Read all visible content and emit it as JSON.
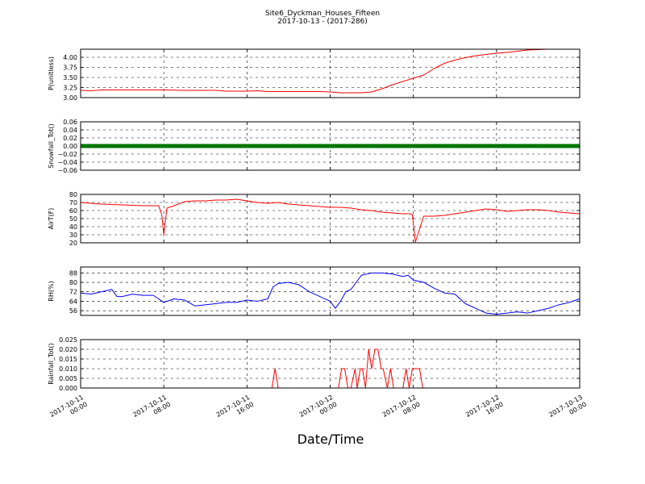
{
  "title": "Site6_Dyckman_Houses_Fifteen",
  "subtitle": "2017-10-13 - (2017-286)",
  "colors": {
    "red": "#ff0000",
    "green": "#008000",
    "blue": "#0000ff",
    "grid": "#000000"
  },
  "chart_data": {
    "type": "line",
    "xlabel": "Date/Time",
    "x_ticks": [
      {
        "value": 0,
        "line1": "2017-10-11",
        "line2": "00:00"
      },
      {
        "value": 8,
        "line1": "2017-10-11",
        "line2": "08:00"
      },
      {
        "value": 16,
        "line1": "2017-10-11",
        "line2": "16:00"
      },
      {
        "value": 24,
        "line1": "2017-10-12",
        "line2": "00:00"
      },
      {
        "value": 32,
        "line1": "2017-10-12",
        "line2": "08:00"
      },
      {
        "value": 40,
        "line1": "2017-10-12",
        "line2": "16:00"
      },
      {
        "value": 48,
        "line1": "2017-10-13",
        "line2": "00:00"
      }
    ],
    "xlim": [
      0,
      48
    ],
    "grid": true,
    "panels": [
      {
        "ylabel": "P(unitless)",
        "ylim": [
          3.0,
          4.2
        ],
        "yticks": [
          "3.00",
          "3.25",
          "3.50",
          "3.75",
          "4.00"
        ],
        "ytick_values": [
          3.0,
          3.25,
          3.5,
          3.75,
          4.0
        ],
        "series": [
          {
            "color": "#ff0000",
            "x": [
              0,
              1,
              2,
              4,
              6,
              8,
              10,
              12,
              13,
              14,
              16,
              17,
              18,
              20,
              22,
              23,
              24,
              25,
              26,
              27,
              28,
              29,
              30,
              31,
              32,
              33,
              34,
              35,
              36,
              37,
              38,
              39,
              40,
              41,
              42,
              43,
              44,
              45,
              46,
              47,
              48
            ],
            "y": [
              3.18,
              3.17,
              3.19,
              3.19,
              3.19,
              3.19,
              3.18,
              3.18,
              3.18,
              3.16,
              3.16,
              3.17,
              3.15,
              3.15,
              3.15,
              3.15,
              3.14,
              3.12,
              3.12,
              3.12,
              3.14,
              3.22,
              3.32,
              3.4,
              3.48,
              3.56,
              3.72,
              3.85,
              3.93,
              3.99,
              4.04,
              4.07,
              4.1,
              4.12,
              4.15,
              4.18,
              4.19,
              4.2,
              4.2,
              4.2,
              4.2
            ]
          }
        ]
      },
      {
        "ylabel": "Snowfall_Tot()",
        "ylim": [
          -0.06,
          0.06
        ],
        "yticks": [
          "−0.06",
          "−0.04",
          "−0.02",
          "0.00",
          "0.02",
          "0.04",
          "0.06"
        ],
        "ytick_values": [
          -0.06,
          -0.04,
          -0.02,
          0.0,
          0.02,
          0.04,
          0.06
        ],
        "series": [
          {
            "color": "#008000",
            "markers": true,
            "x": [
              0,
              48
            ],
            "y": [
              0,
              0
            ]
          }
        ]
      },
      {
        "ylabel": "AirT(F)",
        "ylim": [
          20,
          80
        ],
        "yticks": [
          "20",
          "30",
          "40",
          "50",
          "60",
          "70",
          "80"
        ],
        "ytick_values": [
          20,
          30,
          40,
          50,
          60,
          70,
          80
        ],
        "series": [
          {
            "color": "#ff0000",
            "x": [
              0,
              2,
              4,
              6,
              7.5,
              7.8,
              8.0,
              8.3,
              9,
              10,
              11,
              12,
              13,
              14,
              15,
              16,
              17,
              18,
              19,
              20,
              21,
              22,
              23,
              24,
              25,
              26,
              27,
              28,
              29,
              30,
              31,
              31.7,
              31.9,
              32.2,
              33,
              34,
              35,
              36,
              37,
              38,
              39,
              40,
              41,
              42,
              43,
              44,
              45,
              46,
              47,
              48
            ],
            "y": [
              70,
              68,
              67,
              66,
              66,
              55,
              30,
              63,
              66,
              71,
              72,
              72,
              73,
              73,
              74,
              72,
              70,
              69,
              70,
              68,
              67,
              66,
              65,
              64,
              64,
              63,
              61,
              60,
              58,
              57,
              56,
              56,
              55,
              21,
              53,
              53,
              54,
              56,
              58,
              60,
              62,
              61,
              59,
              60,
              61,
              61,
              60,
              58,
              57,
              56
            ]
          }
        ]
      },
      {
        "ylabel": "RH(%)",
        "ylim": [
          52,
          93
        ],
        "yticks": [
          "56",
          "64",
          "72",
          "80",
          "88"
        ],
        "ytick_values": [
          56,
          64,
          72,
          80,
          88
        ],
        "series": [
          {
            "color": "#0000ff",
            "x": [
              0,
              1,
              2,
              3,
              3.5,
              4,
              5,
              6,
              7,
              8,
              9,
              10,
              11,
              12,
              13,
              14,
              15,
              16,
              17,
              18,
              18.5,
              19,
              20,
              21,
              22,
              23,
              24,
              24.5,
              25,
              25.5,
              26,
              27,
              28,
              29,
              30,
              31,
              31.5,
              32,
              33,
              34,
              35,
              36,
              37,
              38,
              39,
              40,
              41,
              42,
              43,
              44,
              45,
              46,
              47,
              48
            ],
            "y": [
              71,
              70,
              72,
              74,
              68,
              68,
              70,
              69,
              69,
              63,
              66,
              65,
              60,
              61,
              62,
              63,
              63,
              65,
              64,
              66,
              76,
              79,
              80,
              78,
              72,
              68,
              64,
              58,
              64,
              72,
              74,
              86,
              88,
              88,
              87,
              85,
              86,
              82,
              80,
              75,
              71,
              70,
              62,
              58,
              54,
              53,
              54,
              55,
              54,
              56,
              58,
              61,
              63,
              66
            ]
          }
        ]
      },
      {
        "ylabel": "Rainfall_Tot()",
        "ylim": [
          0,
          0.025
        ],
        "yticks": [
          "0.000",
          "0.005",
          "0.010",
          "0.015",
          "0.020",
          "0.025"
        ],
        "ytick_values": [
          0.0,
          0.005,
          0.01,
          0.015,
          0.02,
          0.025
        ],
        "series": [
          {
            "color": "#ff0000",
            "x": [
              0,
              18.4,
              18.7,
              19.0,
              24.8,
              25.1,
              25.4,
              25.7,
              26.0,
              26.4,
              26.6,
              26.9,
              27.1,
              27.4,
              27.7,
              28.0,
              28.3,
              28.6,
              28.9,
              29.1,
              29.5,
              29.8,
              30.1,
              30.4,
              31.0,
              31.3,
              31.6,
              31.9,
              32.2,
              32.6,
              32.9,
              48
            ],
            "y": [
              0,
              0,
              0.01,
              0,
              0,
              0.01,
              0.01,
              0,
              0,
              0.01,
              0,
              0.01,
              0.01,
              0,
              0.02,
              0.01,
              0.02,
              0.02,
              0.01,
              0.01,
              0,
              0.01,
              0,
              0,
              0,
              0.01,
              0,
              0.01,
              0.01,
              0.01,
              0,
              0
            ]
          }
        ]
      }
    ]
  }
}
